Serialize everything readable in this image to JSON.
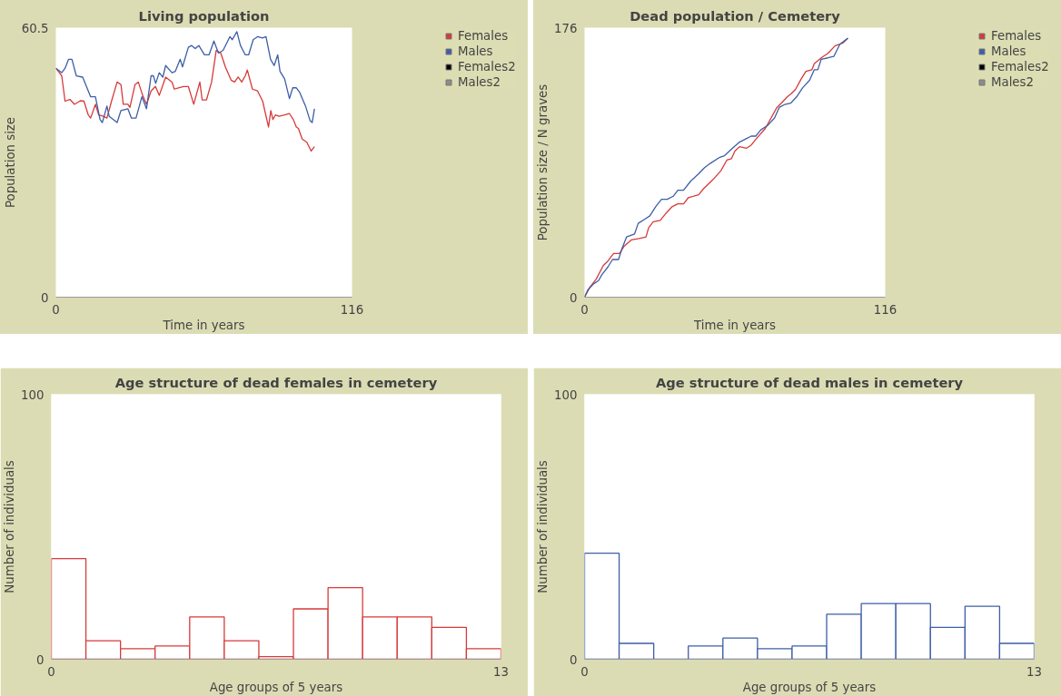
{
  "chart_data": [
    {
      "type": "line",
      "title": "Living population",
      "xlabel": "Time in years",
      "ylabel": "Population size",
      "xlim": [
        0,
        116
      ],
      "ylim": [
        0,
        60.5
      ],
      "xticks": [
        0,
        116
      ],
      "yticks": [
        0,
        60.5
      ],
      "legend": "right",
      "series": [
        {
          "name": "Females",
          "color": "#d73a3a",
          "x": [
            0,
            2.3,
            3.6,
            5.5,
            7.3,
            9.6,
            11,
            12.7,
            13.6,
            15.5,
            16.8,
            18.6,
            20,
            21.8,
            24,
            25.5,
            26.4,
            28.2,
            29,
            31,
            32.3,
            34,
            35.5,
            37.3,
            39,
            40.5,
            43,
            45.5,
            46.4,
            48,
            50,
            51.9,
            54,
            56.4,
            57.3,
            59,
            61,
            62.8,
            64.6,
            66.4,
            68.7,
            70,
            71.4,
            72.8,
            74.2,
            75,
            77,
            79,
            81,
            83.3,
            84.2,
            85,
            86,
            87.4,
            89.6,
            91.5,
            93,
            94.2,
            95,
            96.5,
            98.3,
            100,
            101.3
          ],
          "values": [
            51.4,
            49.7,
            44,
            44.4,
            43.3,
            44.1,
            44,
            40.9,
            40.2,
            43.3,
            40.9,
            40.6,
            40.2,
            44,
            48.3,
            47.7,
            43.3,
            43.3,
            42.6,
            47.7,
            48.3,
            45.3,
            43.3,
            46.3,
            47.3,
            45.3,
            49.4,
            48.3,
            46.7,
            47,
            47.3,
            47.3,
            43.3,
            48.3,
            44.3,
            44.3,
            48.3,
            55.4,
            54.8,
            51.7,
            48.7,
            48.3,
            49.4,
            48.3,
            49.7,
            51,
            46.7,
            46.3,
            44,
            38.2,
            41.9,
            39.9,
            40.9,
            40.6,
            40.9,
            41.2,
            39.9,
            38.2,
            37.9,
            35.5,
            34.8,
            32.8,
            33.8
          ]
        },
        {
          "name": "Males",
          "color": "#3d5ea8",
          "x": [
            0,
            2.3,
            3.6,
            5,
            6.3,
            8,
            10.5,
            13.6,
            15.5,
            17.3,
            18.2,
            20,
            20.9,
            24,
            25.5,
            28.2,
            29.6,
            31.4,
            33.7,
            35.5,
            37.3,
            38.2,
            39.1,
            40.5,
            41.9,
            43,
            45.5,
            46.8,
            48.7,
            49.6,
            51.9,
            53.2,
            54.6,
            56,
            58.2,
            60,
            61.9,
            63.7,
            65.5,
            68.2,
            69.1,
            70.9,
            72.3,
            74.2,
            75.5,
            77.3,
            79.1,
            80.9,
            82.3,
            84.1,
            85.5,
            86.9,
            87.8,
            89.6,
            91.5,
            92.8,
            94.2,
            95.5,
            97.8,
            99.6,
            100.4,
            101.3
          ],
          "values": [
            51.4,
            50.4,
            51.4,
            53.4,
            53.4,
            49.7,
            49.4,
            45,
            45,
            39.9,
            39.2,
            42.9,
            40.6,
            39.2,
            41.9,
            42.3,
            40.2,
            40.2,
            45,
            42.3,
            49.7,
            49.7,
            48,
            50.4,
            49.4,
            52,
            50.4,
            50.7,
            53.4,
            51.7,
            56.1,
            56.5,
            55.8,
            56.5,
            54.4,
            54.4,
            57.5,
            54.8,
            55.4,
            58.5,
            57.8,
            59.6,
            56.5,
            54.4,
            54.4,
            57.8,
            58.5,
            58.2,
            58.5,
            53.4,
            52,
            54.4,
            50.7,
            49,
            44.6,
            47,
            47,
            46,
            42.9,
            39.6,
            39.2,
            42.3
          ]
        },
        {
          "name": "Females2",
          "color": "#000000"
        },
        {
          "name": "Males2",
          "color": "#8c8c8c"
        }
      ]
    },
    {
      "type": "line",
      "title": "Dead population / Cemetery",
      "xlabel": "Time in years",
      "ylabel": "Population size / N graves",
      "xlim": [
        0,
        116
      ],
      "ylim": [
        0,
        176
      ],
      "xticks": [
        0,
        116
      ],
      "yticks": [
        0,
        176
      ],
      "legend": "right",
      "series": [
        {
          "name": "Females",
          "color": "#d73a3a",
          "x": [
            0,
            2.2,
            4.5,
            7.2,
            9,
            11.2,
            13.5,
            15.3,
            18,
            21,
            23.7,
            24.7,
            26.5,
            29.2,
            31.5,
            33.7,
            36,
            38.2,
            40,
            44,
            45.9,
            49.5,
            52.6,
            54.9,
            56.7,
            58,
            59.8,
            62.5,
            64.3,
            66.1,
            69.7,
            74.2,
            76,
            78.2,
            79.6,
            81.4,
            83.6,
            85.4,
            87.7,
            88.6,
            91.3,
            93.9,
            96.7,
            98.5,
            99.8,
            101.6
          ],
          "values": [
            0,
            6.9,
            11.8,
            20.6,
            23.6,
            28.5,
            28.5,
            33.4,
            37.4,
            38.3,
            39.3,
            45.2,
            49.2,
            50.2,
            55,
            59,
            61,
            61,
            64.9,
            66.9,
            70.8,
            76.7,
            82.6,
            89.5,
            90.5,
            95.4,
            98.3,
            97.3,
            99.3,
            103.2,
            110.1,
            123.9,
            126.8,
            130.8,
            132.7,
            135.7,
            142.6,
            147.5,
            148.5,
            152.4,
            156.3,
            159.3,
            164.2,
            165.2,
            166.2,
            169.1
          ]
        },
        {
          "name": "Males",
          "color": "#3d5ea8",
          "x": [
            0,
            1.3,
            3.6,
            5.4,
            6.7,
            9,
            10.8,
            13.1,
            14.4,
            16.2,
            19.3,
            20.7,
            23.4,
            25.2,
            27.4,
            29.7,
            31.9,
            34.2,
            36,
            38.2,
            40.9,
            44,
            46.3,
            48.6,
            52.2,
            54,
            57.1,
            59.8,
            62,
            64.3,
            66.1,
            67.9,
            70.6,
            73.3,
            75.1,
            77.3,
            79.6,
            81.8,
            84.1,
            86.8,
            88.6,
            90,
            91.3,
            93.9,
            96.2,
            98.5,
            101.6
          ],
          "values": [
            0,
            4.9,
            8.8,
            10.8,
            14.7,
            19.7,
            24.6,
            24.6,
            31.5,
            39.3,
            41.3,
            48.2,
            51.1,
            53.1,
            59,
            63.9,
            63.9,
            65.9,
            69.8,
            69.8,
            75.7,
            80.6,
            84.6,
            87.5,
            91.4,
            92.4,
            97.3,
            101.3,
            103.2,
            105.2,
            105.2,
            109.1,
            112.1,
            117,
            123.9,
            125.9,
            126.8,
            130.8,
            136.7,
            141.6,
            148.5,
            148.5,
            155.4,
            156.3,
            157.3,
            165.2,
            169.1
          ]
        },
        {
          "name": "Females2",
          "color": "#000000"
        },
        {
          "name": "Males2",
          "color": "#8c8c8c"
        }
      ]
    },
    {
      "type": "histogram",
      "title": "Age structure of dead females in cemetery",
      "xlabel": "Age groups of 5 years",
      "ylabel": "Number of individuals",
      "xlim": [
        0,
        13
      ],
      "ylim": [
        0,
        100
      ],
      "xticks": [
        0,
        13
      ],
      "yticks": [
        0,
        100
      ],
      "color": "#d73a3a",
      "bins": [
        0,
        1,
        2,
        3,
        4,
        5,
        6,
        7,
        8,
        9,
        10,
        11,
        12,
        13
      ],
      "values": [
        38,
        7,
        4,
        5,
        16,
        7,
        1,
        19,
        27,
        16,
        16,
        12,
        4
      ]
    },
    {
      "type": "histogram",
      "title": "Age structure of dead males in cemetery",
      "xlabel": "Age groups of 5 years",
      "ylabel": "Number of individuals",
      "xlim": [
        0,
        13
      ],
      "ylim": [
        0,
        100
      ],
      "xticks": [
        0,
        13
      ],
      "yticks": [
        0,
        100
      ],
      "color": "#3d5ea8",
      "bins": [
        0,
        1,
        2,
        3,
        4,
        5,
        6,
        7,
        8,
        9,
        10,
        11,
        12,
        13
      ],
      "values": [
        40,
        6,
        0,
        5,
        8,
        4,
        5,
        17,
        21,
        21,
        12,
        20,
        6
      ]
    }
  ]
}
